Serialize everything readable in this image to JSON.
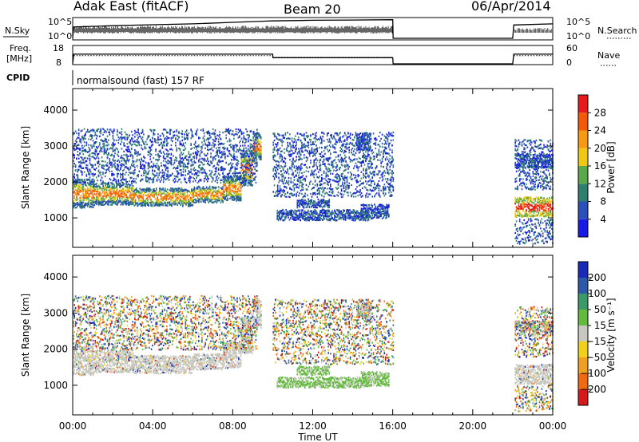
{
  "header": {
    "station": "Adak East (fitACF)",
    "beam": "Beam 20",
    "date": "06/Apr/2014"
  },
  "sidebars": {
    "nsky_label": "N.Sky",
    "nsearch_label": "N.Search",
    "freq_label_line1": "Freq.",
    "freq_label_line2": "[MHz]",
    "nave_label": "Nave",
    "cpid_label": "CPID",
    "nsky_ticks": [
      "10^5",
      "10^0"
    ],
    "nsearch_ticks": [
      "10^5",
      "10^0"
    ],
    "freq_ticks": [
      "18",
      "8"
    ],
    "nave_ticks": [
      "60",
      "0"
    ],
    "cpid_text": "normalsound (fast) 157 RF"
  },
  "colors": {
    "power_scale": [
      "#1a1ae6",
      "#2a4fb8",
      "#2f7f6e",
      "#5aa84a",
      "#f0c814",
      "#f59a12",
      "#f25a0a",
      "#e61c1c"
    ],
    "velocity_scale": [
      "#d61a1a",
      "#ef6a10",
      "#f0a020",
      "#f0d018",
      "#c8c8c0",
      "#62bb3c",
      "#3a9a6a",
      "#2d5aa8",
      "#1a2ab8"
    ]
  },
  "chart_data": [
    {
      "type": "line",
      "panel": "noise",
      "x_unit": "hours UT",
      "series": [
        {
          "name": "N.Sky",
          "x": [
            0,
            0.05,
            2,
            4,
            6,
            8,
            9.6,
            10,
            12,
            14,
            16,
            16.02,
            22,
            22.05,
            24
          ],
          "values": [
            1,
            900,
            2000,
            3500,
            6000,
            15000,
            30000,
            35000,
            50000,
            60000,
            70000,
            1,
            1,
            3000,
            6000
          ]
        },
        {
          "name": "Freq.",
          "x": [
            0,
            0.05,
            10,
            10.01,
            16,
            16.02,
            22,
            22.05,
            24
          ],
          "values": [
            8,
            13.5,
            13.5,
            11.5,
            11.5,
            8,
            8,
            13.5,
            13.5
          ]
        },
        {
          "name": "Nave",
          "x": [
            0.05,
            10,
            10.01,
            16,
            22.05,
            24
          ],
          "values": [
            28,
            28,
            22,
            22,
            28,
            28
          ]
        }
      ]
    },
    {
      "type": "heatmap",
      "panel": "power",
      "title": "",
      "xlabel": "Time UT",
      "ylabel": "Slant Range [km]",
      "xlim": [
        0,
        24
      ],
      "ylim": [
        180,
        4600
      ],
      "x_ticks": [
        "00:00",
        "04:00",
        "08:00",
        "12:00",
        "16:00",
        "20:00",
        "00:00"
      ],
      "y_ticks": [
        "1000",
        "2000",
        "3000",
        "4000"
      ],
      "colorbar_label": "Power [dB]",
      "colorbar_ticks": [
        "28",
        "24",
        "20",
        "16",
        "12",
        "8",
        "4"
      ],
      "scale_range": [
        0,
        30
      ]
    },
    {
      "type": "heatmap",
      "panel": "velocity",
      "title": "",
      "xlabel": "Time UT",
      "ylabel": "Slant Range [km]",
      "xlim": [
        0,
        24
      ],
      "ylim": [
        180,
        4600
      ],
      "x_ticks": [
        "00:00",
        "04:00",
        "08:00",
        "12:00",
        "16:00",
        "20:00",
        "00:00"
      ],
      "y_ticks": [
        "1000",
        "2000",
        "3000",
        "4000"
      ],
      "colorbar_label": "Velocity [m s⁻¹]",
      "colorbar_ticks": [
        "200",
        "100",
        "50",
        "15",
        "−15",
        "−50",
        "−100",
        "−200"
      ]
    }
  ]
}
